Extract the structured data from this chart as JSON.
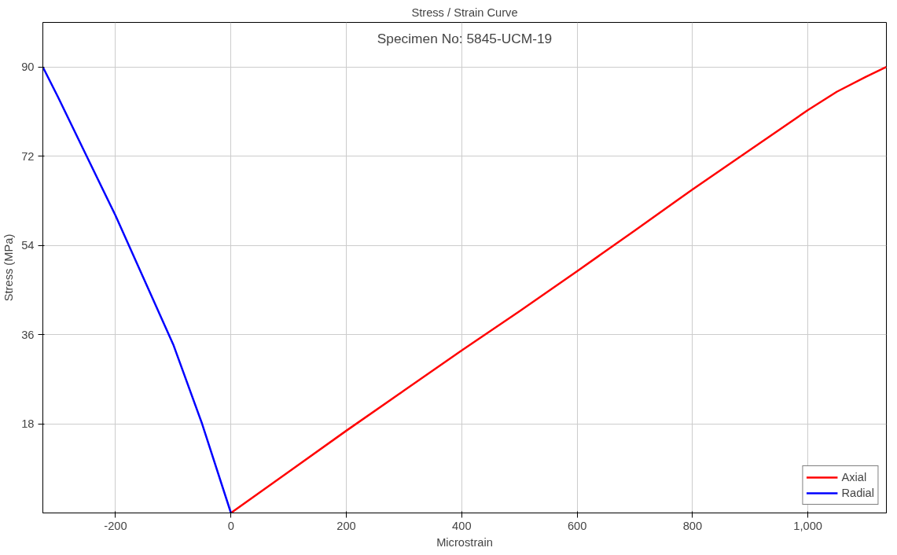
{
  "chart_data": {
    "type": "line",
    "title": "Stress / Strain Curve",
    "xlabel": "Microstrain",
    "ylabel": "Stress (MPa)",
    "annotations": [
      "Specimen No: 5845-UCM-19"
    ],
    "xlim": [
      -326,
      1136
    ],
    "ylim": [
      0,
      99
    ],
    "xticks": [
      {
        "value": -200,
        "label": "-200"
      },
      0,
      200,
      400,
      600,
      800,
      {
        "value": 1000,
        "label": "1,000"
      }
    ],
    "yticks": [
      18,
      36,
      54,
      72,
      90
    ],
    "grid": true,
    "legend": "bottom right",
    "line_style": "solid",
    "marker": "none",
    "series": [
      {
        "name": "Axial",
        "color": "#ff0000",
        "x": [
          0,
          100,
          200,
          300,
          400,
          500,
          600,
          700,
          800,
          900,
          1000,
          1050,
          1100,
          1136
        ],
        "values": [
          0,
          8.3,
          16.6,
          24.7,
          32.8,
          40.7,
          48.8,
          57,
          65.3,
          73.3,
          81.3,
          85,
          88,
          90
        ]
      },
      {
        "name": "Radial",
        "color": "#0000ff",
        "x": [
          0,
          -50,
          -100,
          -150,
          -200,
          -250,
          -300,
          -326
        ],
        "values": [
          0,
          18,
          34,
          47,
          60,
          72,
          84,
          90
        ]
      }
    ]
  }
}
